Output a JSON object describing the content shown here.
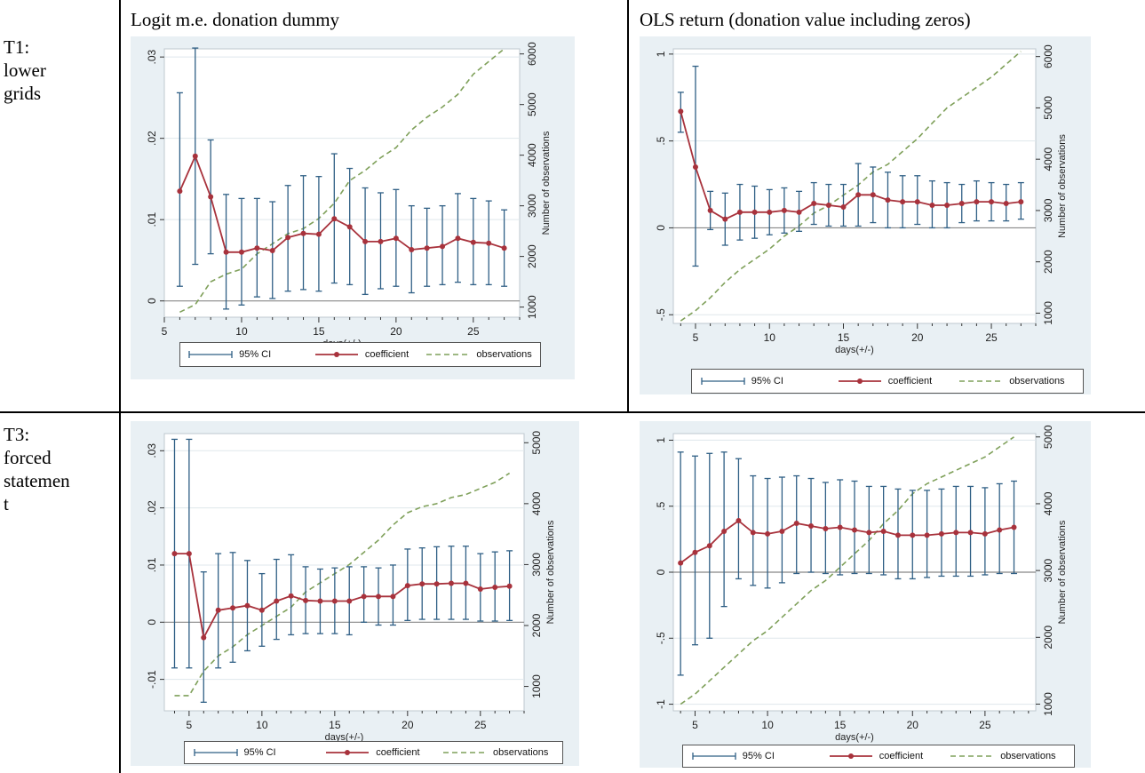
{
  "headers": {
    "col1": "Logit m.e. donation dummy",
    "col2": "OLS return (donation value including zeros)"
  },
  "rows": [
    {
      "lines": [
        "T1:",
        "lower",
        "grids"
      ]
    },
    {
      "lines": [
        "T3:",
        "forced",
        "statemen",
        "t"
      ]
    }
  ],
  "legend": {
    "ci": "95% CI",
    "coef": "coefficient",
    "obs": "observations"
  },
  "colors": {
    "coef": "#a8323c",
    "ci": "#2f5f85",
    "obs": "#7fa05a",
    "plot_bg": "#ffffff",
    "panel_bg": "#e9f0f4",
    "zero_line": "#888888",
    "grid": "#dfe7ec"
  },
  "chart_data": [
    {
      "type": "line",
      "xlabel": "days(+/-)",
      "ylabel": "",
      "y2label": "Number of observations",
      "xlim": [
        5,
        28
      ],
      "ylim": [
        -0.002,
        0.031
      ],
      "y2lim": [
        800,
        6100
      ],
      "xticks": [
        5,
        10,
        15,
        20,
        25
      ],
      "yticks": [
        0,
        0.01,
        0.02,
        0.03
      ],
      "ytick_labels": [
        "0",
        ".01",
        ".02",
        ".03"
      ],
      "y2ticks": [
        1000,
        2000,
        3000,
        4000,
        5000,
        6000
      ],
      "x": [
        6,
        7,
        8,
        9,
        10,
        11,
        12,
        13,
        14,
        15,
        16,
        17,
        18,
        19,
        20,
        21,
        22,
        23,
        24,
        25,
        26,
        27
      ],
      "coefficient": [
        0.0135,
        0.0178,
        0.0128,
        0.006,
        0.006,
        0.0065,
        0.0062,
        0.0078,
        0.0083,
        0.0082,
        0.0101,
        0.0091,
        0.0073,
        0.0073,
        0.0077,
        0.0063,
        0.0065,
        0.0067,
        0.0077,
        0.0072,
        0.0071,
        0.0065
      ],
      "ci_low": [
        0.0018,
        0.0045,
        0.0058,
        -0.001,
        -0.0005,
        0.0005,
        0.0003,
        0.0012,
        0.0014,
        0.0012,
        0.0022,
        0.002,
        0.0008,
        0.0015,
        0.0018,
        0.001,
        0.0018,
        0.002,
        0.0023,
        0.002,
        0.002,
        0.0018
      ],
      "ci_high": [
        0.0256,
        0.0311,
        0.0198,
        0.0131,
        0.0126,
        0.0126,
        0.0122,
        0.0142,
        0.0154,
        0.0153,
        0.0181,
        0.0163,
        0.0139,
        0.0133,
        0.0137,
        0.0117,
        0.0114,
        0.0117,
        0.0132,
        0.0126,
        0.0123,
        0.0112
      ],
      "observations": [
        900,
        1050,
        1500,
        1650,
        1750,
        2050,
        2250,
        2450,
        2550,
        2750,
        3050,
        3500,
        3700,
        3950,
        4150,
        4500,
        4750,
        4950,
        5200,
        5600,
        5850,
        6100
      ]
    },
    {
      "type": "line",
      "xlabel": "days(+/-)",
      "ylabel": "",
      "y2label": "Number of observations",
      "xlim": [
        3.5,
        28
      ],
      "ylim": [
        -0.55,
        1.03
      ],
      "y2lim": [
        800,
        6150
      ],
      "xticks": [
        5,
        10,
        15,
        20,
        25
      ],
      "yticks": [
        -0.5,
        0,
        0.5,
        1
      ],
      "ytick_labels": [
        "-.5",
        "0",
        ".5",
        "1"
      ],
      "y2ticks": [
        1000,
        2000,
        3000,
        4000,
        5000,
        6000
      ],
      "x": [
        4,
        5,
        6,
        7,
        8,
        9,
        10,
        11,
        12,
        13,
        14,
        15,
        16,
        17,
        18,
        19,
        20,
        21,
        22,
        23,
        24,
        25,
        26,
        27
      ],
      "coefficient": [
        0.67,
        0.35,
        0.1,
        0.05,
        0.09,
        0.09,
        0.09,
        0.1,
        0.09,
        0.14,
        0.13,
        0.12,
        0.19,
        0.19,
        0.16,
        0.15,
        0.15,
        0.13,
        0.13,
        0.14,
        0.15,
        0.15,
        0.14,
        0.15
      ],
      "ci_low": [
        0.55,
        -0.22,
        -0.01,
        -0.1,
        -0.07,
        -0.06,
        -0.04,
        -0.03,
        -0.02,
        0.02,
        0.01,
        0.01,
        0.01,
        0.03,
        0.0,
        0.0,
        0.02,
        0.0,
        0.0,
        0.03,
        0.04,
        0.04,
        0.04,
        0.05
      ],
      "ci_high": [
        0.78,
        0.93,
        0.21,
        0.2,
        0.25,
        0.24,
        0.22,
        0.23,
        0.21,
        0.26,
        0.25,
        0.25,
        0.37,
        0.35,
        0.32,
        0.3,
        0.3,
        0.27,
        0.26,
        0.25,
        0.27,
        0.26,
        0.25,
        0.26
      ],
      "observations": [
        850,
        1050,
        1300,
        1600,
        1850,
        2050,
        2250,
        2500,
        2700,
        2950,
        3100,
        3300,
        3500,
        3750,
        3900,
        4150,
        4400,
        4700,
        5000,
        5200,
        5400,
        5600,
        5850,
        6100
      ]
    },
    {
      "type": "line",
      "xlabel": "days(+/-)",
      "ylabel": "",
      "y2label": "Number of observations",
      "xlim": [
        3.3,
        28
      ],
      "ylim": [
        -0.0155,
        0.033
      ],
      "y2lim": [
        600,
        5150
      ],
      "xticks": [
        5,
        10,
        15,
        20,
        25
      ],
      "yticks": [
        -0.01,
        0,
        0.01,
        0.02,
        0.03
      ],
      "ytick_labels": [
        "-.01",
        "0",
        ".01",
        ".02",
        ".03"
      ],
      "y2ticks": [
        1000,
        2000,
        3000,
        4000,
        5000
      ],
      "x": [
        4,
        5,
        6,
        7,
        8,
        9,
        10,
        11,
        12,
        13,
        14,
        15,
        16,
        17,
        18,
        19,
        20,
        21,
        22,
        23,
        24,
        25,
        26,
        27
      ],
      "coefficient": [
        0.012,
        0.012,
        -0.0027,
        0.0021,
        0.0025,
        0.0029,
        0.0021,
        0.0037,
        0.0046,
        0.0038,
        0.0037,
        0.0037,
        0.0037,
        0.0045,
        0.0045,
        0.0045,
        0.0064,
        0.0067,
        0.0067,
        0.0068,
        0.0068,
        0.0058,
        0.0061,
        0.0063
      ],
      "ci_low": [
        -0.008,
        -0.008,
        -0.014,
        -0.008,
        -0.007,
        -0.005,
        -0.0042,
        -0.003,
        -0.0022,
        -0.002,
        -0.002,
        -0.002,
        -0.0022,
        0.0,
        -0.0005,
        -0.0005,
        0.0003,
        0.0005,
        0.0005,
        0.0005,
        0.0005,
        0.0002,
        0.0002,
        0.0003
      ],
      "ci_high": [
        0.032,
        0.032,
        0.0088,
        0.012,
        0.0122,
        0.0108,
        0.0085,
        0.011,
        0.0118,
        0.0097,
        0.0093,
        0.0095,
        0.0097,
        0.0097,
        0.0095,
        0.01,
        0.0128,
        0.013,
        0.0132,
        0.0133,
        0.0133,
        0.012,
        0.0123,
        0.0125
      ],
      "observations": [
        850,
        850,
        1250,
        1500,
        1650,
        1850,
        2000,
        2150,
        2300,
        2550,
        2700,
        2850,
        3000,
        3200,
        3400,
        3650,
        3850,
        3950,
        4000,
        4100,
        4150,
        4250,
        4350,
        4500
      ]
    },
    {
      "type": "line",
      "xlabel": "days(+/-)",
      "ylabel": "",
      "y2label": "Number of observations",
      "xlim": [
        3.5,
        28.5
      ],
      "ylim": [
        -1.05,
        1.05
      ],
      "y2lim": [
        900,
        5050
      ],
      "xticks": [
        5,
        10,
        15,
        20,
        25
      ],
      "yticks": [
        -1,
        -0.5,
        0,
        0.5,
        1
      ],
      "ytick_labels": [
        "-1",
        "-.5",
        "0",
        ".5",
        "1"
      ],
      "y2ticks": [
        1000,
        2000,
        3000,
        4000,
        5000
      ],
      "x": [
        4,
        5,
        6,
        7,
        8,
        9,
        10,
        11,
        12,
        13,
        14,
        15,
        16,
        17,
        18,
        19,
        20,
        21,
        22,
        23,
        24,
        25,
        26,
        27
      ],
      "coefficient": [
        0.07,
        0.15,
        0.2,
        0.31,
        0.39,
        0.3,
        0.29,
        0.31,
        0.37,
        0.35,
        0.33,
        0.34,
        0.32,
        0.3,
        0.31,
        0.28,
        0.28,
        0.28,
        0.29,
        0.3,
        0.3,
        0.29,
        0.32,
        0.34
      ],
      "ci_low": [
        -0.78,
        -0.55,
        -0.5,
        -0.26,
        -0.05,
        -0.1,
        -0.12,
        -0.08,
        -0.01,
        0.0,
        -0.01,
        -0.02,
        -0.01,
        -0.01,
        -0.02,
        -0.05,
        -0.05,
        -0.04,
        -0.03,
        -0.03,
        -0.03,
        -0.02,
        -0.01,
        -0.01
      ],
      "ci_high": [
        0.91,
        0.88,
        0.9,
        0.91,
        0.86,
        0.73,
        0.71,
        0.72,
        0.73,
        0.71,
        0.68,
        0.7,
        0.69,
        0.65,
        0.65,
        0.63,
        0.62,
        0.62,
        0.63,
        0.65,
        0.65,
        0.64,
        0.67,
        0.69
      ],
      "observations": [
        1000,
        1150,
        1350,
        1550,
        1750,
        1950,
        2100,
        2300,
        2500,
        2700,
        2850,
        3050,
        3250,
        3450,
        3700,
        3900,
        4150,
        4300,
        4400,
        4500,
        4600,
        4700,
        4850,
        5000
      ]
    }
  ]
}
